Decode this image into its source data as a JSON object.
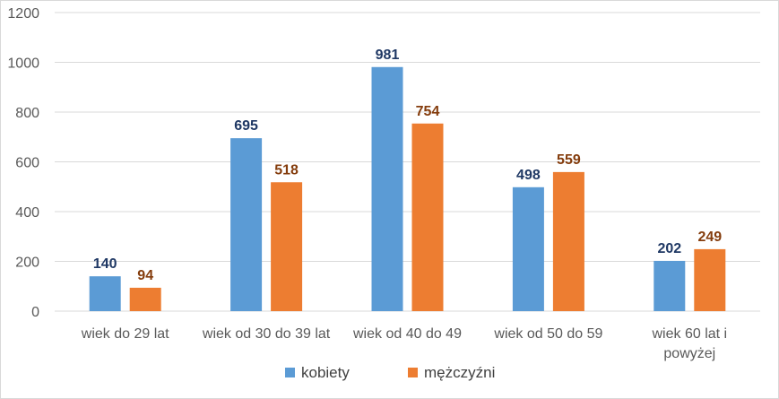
{
  "chart_data": {
    "type": "bar",
    "categories": [
      [
        "wiek do 29 lat"
      ],
      [
        "wiek od 30 do 39 lat"
      ],
      [
        "wiek od 40 do 49"
      ],
      [
        "wiek od 50 do 59"
      ],
      [
        "wiek 60 lat i",
        "powyżej"
      ]
    ],
    "series": [
      {
        "name": "kobiety",
        "values": [
          140,
          695,
          981,
          498,
          202
        ],
        "color": "#5b9bd5",
        "label_color": "#1f3864"
      },
      {
        "name": "mężczyźni",
        "values": [
          94,
          518,
          754,
          559,
          249
        ],
        "color": "#ed7d31",
        "label_color": "#843c0c"
      }
    ],
    "ylim": [
      0,
      1200
    ],
    "yticks": [
      0,
      200,
      400,
      600,
      800,
      1000,
      1200
    ],
    "grid": true,
    "legend_position": "bottom"
  }
}
